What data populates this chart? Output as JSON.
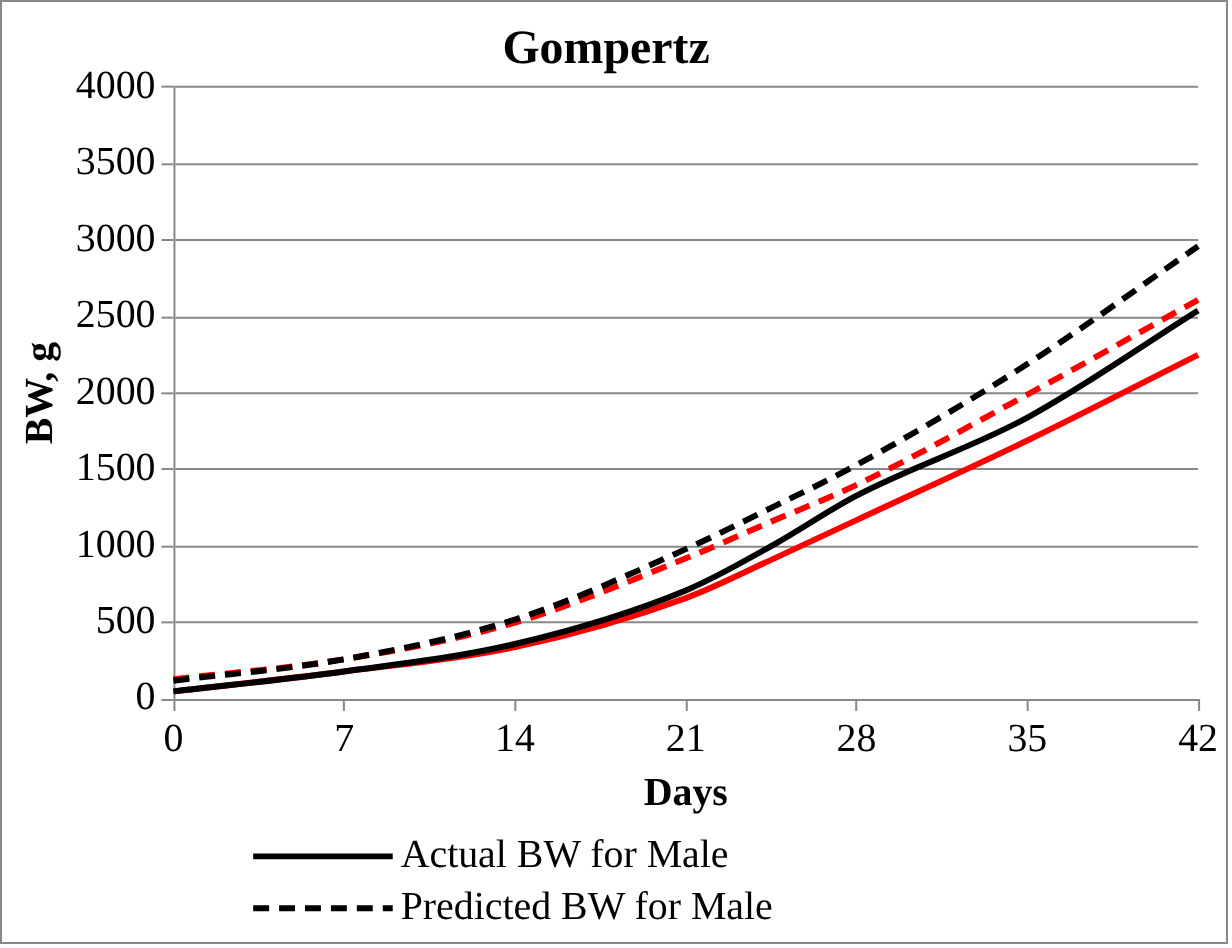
{
  "chart_data": {
    "type": "line",
    "title": "Gompertz",
    "xlabel": "Days",
    "ylabel": "BW, g",
    "x": [
      0,
      7,
      14,
      21,
      24.5,
      28,
      35,
      42
    ],
    "series": [
      {
        "name": "Actual BW for Male",
        "color": "#000000",
        "line_style": "solid",
        "values": [
          50,
          180,
          360,
          710,
          1000,
          1330,
          1840,
          2540
        ]
      },
      {
        "name": "Predicted BW for Male",
        "color": "#000000",
        "line_style": "dashed",
        "values": [
          120,
          260,
          520,
          980,
          1250,
          1530,
          2190,
          2960
        ]
      },
      {
        "color": "#ff0000",
        "line_style": "solid",
        "values": [
          50,
          180,
          340,
          660,
          910,
          1170,
          1690,
          2250
        ]
      },
      {
        "color": "#ff0000",
        "line_style": "dashed",
        "values": [
          130,
          260,
          500,
          920,
          1160,
          1400,
          1990,
          2610
        ]
      }
    ],
    "xlim": [
      0,
      42
    ],
    "xticks": [
      0,
      7,
      14,
      21,
      28,
      35,
      42
    ],
    "ylim": [
      0,
      4000
    ],
    "yticks": [
      0,
      500,
      1000,
      1500,
      2000,
      2500,
      3000,
      3500,
      4000
    ],
    "grid": "y",
    "legend": "bottom",
    "marker": "none"
  }
}
